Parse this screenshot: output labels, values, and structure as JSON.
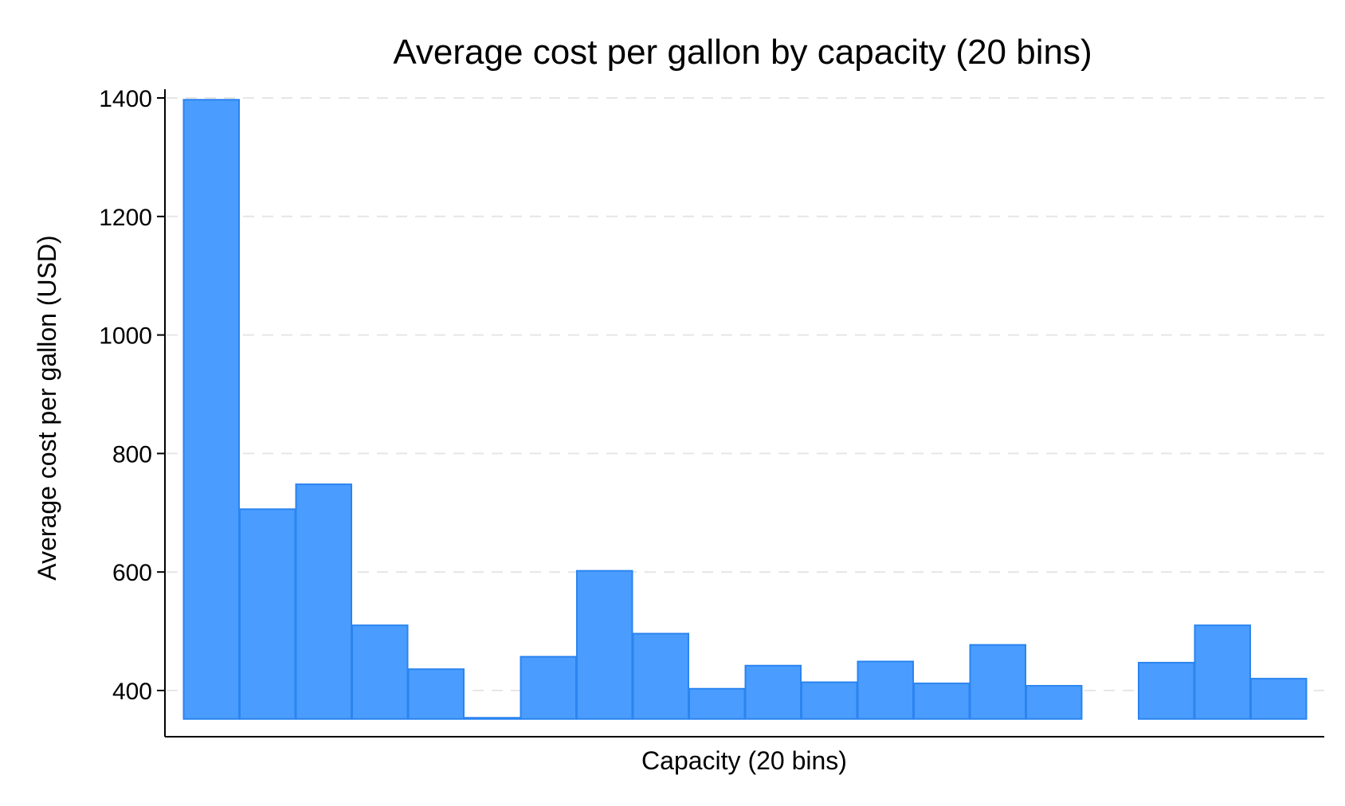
{
  "chart_data": {
    "type": "bar",
    "title": "Average cost per gallon by capacity (20 bins)",
    "xlabel": "Capacity (20 bins)",
    "ylabel": "Average cost per gallon (USD)",
    "ylim": [
      340,
      1440
    ],
    "yticks": [
      400,
      600,
      800,
      1000,
      1200,
      1400
    ],
    "bar_base": 352,
    "grid": true,
    "legend": "none",
    "bin_count": 20,
    "values": [
      1397,
      706,
      748,
      510,
      436,
      354,
      457,
      602,
      496,
      403,
      442,
      414,
      449,
      412,
      477,
      408,
      null,
      447,
      510,
      420
    ],
    "colors": {
      "bar_fill": "#4a9dfe",
      "bar_edge": "#2b84f0",
      "grid": "#e6e6e6"
    }
  }
}
